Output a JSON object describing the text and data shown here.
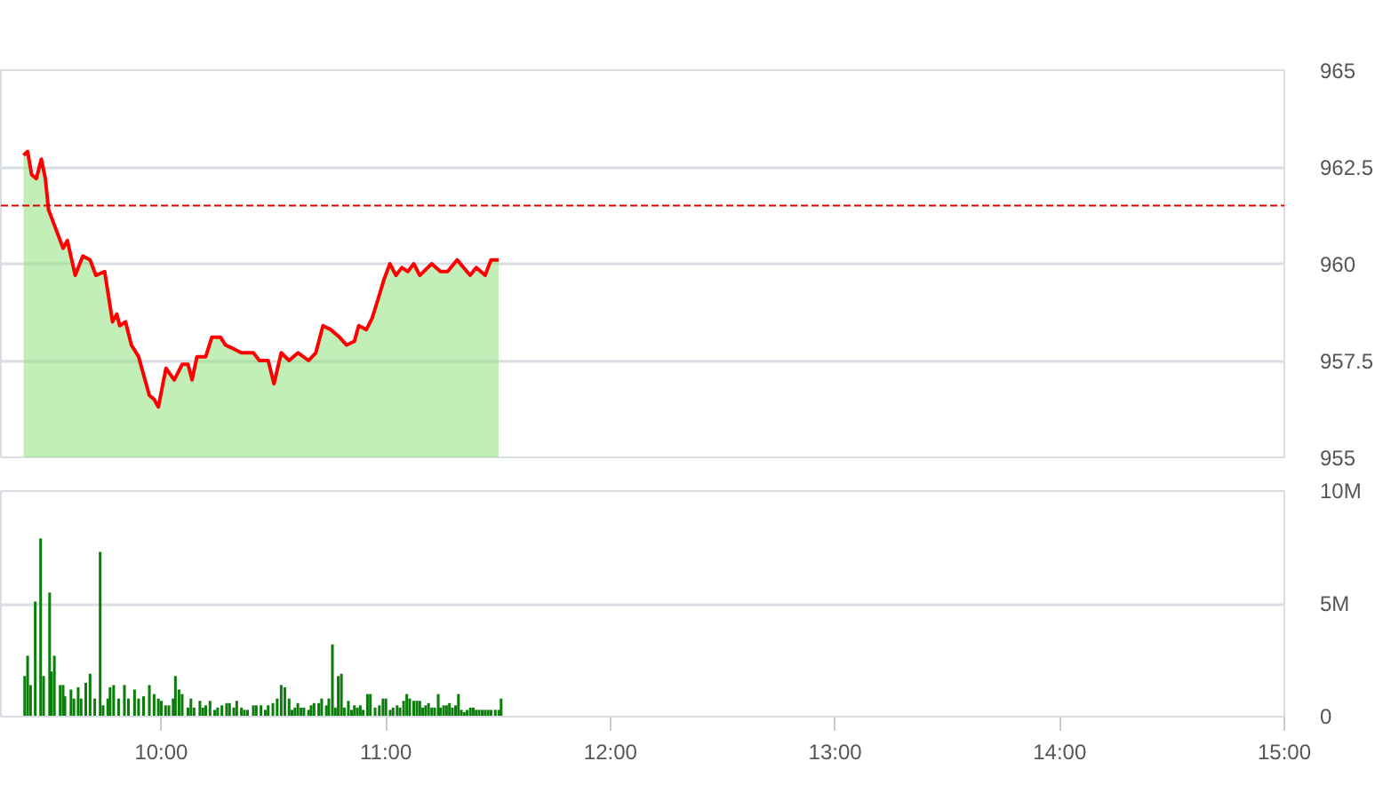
{
  "chart_data": [
    {
      "type": "area",
      "xlim": [
        9.286,
        15
      ],
      "ylim": [
        955,
        965
      ],
      "yticks": [
        965,
        962.5,
        960,
        957.5,
        955
      ],
      "grid": "y",
      "tick_labels": "y",
      "ref_lines": [
        {
          "axis": "y",
          "value": 961.5,
          "color": "#e00000",
          "line_style": "dashed"
        }
      ],
      "series": [
        {
          "type": "line",
          "color": "#ff0000",
          "x": [
            9.387,
            9.405,
            9.423,
            9.444,
            9.466,
            9.484,
            9.498,
            9.524,
            9.563,
            9.582,
            9.617,
            9.651,
            9.683,
            9.709,
            9.748,
            9.783,
            9.802,
            9.815,
            9.841,
            9.867,
            9.899,
            9.947,
            9.968,
            9.987,
            10.021,
            10.058,
            10.093,
            10.119,
            10.137,
            10.159,
            10.198,
            10.225,
            10.264,
            10.286,
            10.323,
            10.357,
            10.41,
            10.437,
            10.476,
            10.502,
            10.534,
            10.569,
            10.609,
            10.656,
            10.688,
            10.72,
            10.754,
            10.794,
            10.825,
            10.86,
            10.879,
            10.913,
            10.939,
            10.966,
            10.992,
            11.018,
            11.045,
            11.071,
            11.098,
            11.124,
            11.151,
            11.204,
            11.243,
            11.275,
            11.317,
            11.375,
            11.402,
            11.442,
            11.468,
            11.502
          ],
          "values": [
            962.8,
            962.9,
            962.3,
            962.2,
            962.7,
            962.2,
            961.4,
            961.0,
            960.4,
            960.6,
            959.7,
            960.2,
            960.1,
            959.7,
            959.8,
            958.5,
            958.7,
            958.4,
            958.5,
            957.9,
            957.6,
            956.6,
            956.5,
            956.3,
            957.3,
            957.0,
            957.4,
            957.4,
            957.0,
            957.6,
            957.6,
            958.1,
            958.1,
            957.9,
            957.8,
            957.7,
            957.7,
            957.5,
            957.5,
            956.9,
            957.7,
            957.5,
            957.7,
            957.5,
            957.7,
            958.4,
            958.3,
            958.1,
            957.9,
            958.0,
            958.4,
            958.3,
            958.6,
            959.1,
            959.6,
            960.0,
            959.7,
            959.9,
            959.8,
            960.0,
            959.7,
            960.0,
            959.8,
            959.8,
            960.1,
            959.7,
            959.9,
            959.7,
            960.1,
            960.1
          ]
        },
        {
          "color": "#8fe07c",
          "x": [
            9.387,
            9.405,
            9.423,
            9.444,
            9.466,
            9.484,
            9.498,
            9.524,
            9.563,
            9.582,
            9.617,
            9.651,
            9.683,
            9.709,
            9.748,
            9.783,
            9.802,
            9.815,
            9.841,
            9.867,
            9.899,
            9.947,
            9.968,
            9.987,
            10.021,
            10.058,
            10.093,
            10.119,
            10.137,
            10.159,
            10.198,
            10.225,
            10.264,
            10.286,
            10.323,
            10.357,
            10.41,
            10.437,
            10.476,
            10.502,
            10.534,
            10.569,
            10.609,
            10.656,
            10.688,
            10.72,
            10.754,
            10.794,
            10.825,
            10.86,
            10.879,
            10.913,
            10.939,
            10.966,
            10.992,
            11.018,
            11.045,
            11.071,
            11.098,
            11.124,
            11.151,
            11.204,
            11.243,
            11.275,
            11.317,
            11.375,
            11.402,
            11.442,
            11.468,
            11.502
          ],
          "values": [
            962.8,
            962.9,
            962.3,
            962.2,
            962.7,
            962.2,
            961.4,
            961.0,
            960.4,
            960.6,
            959.7,
            960.2,
            960.1,
            959.7,
            959.8,
            958.5,
            958.7,
            958.4,
            958.5,
            957.9,
            957.6,
            956.6,
            956.5,
            956.3,
            957.3,
            957.0,
            957.4,
            957.4,
            957.0,
            957.6,
            957.6,
            958.1,
            958.1,
            957.9,
            957.8,
            957.7,
            957.7,
            957.5,
            957.5,
            956.9,
            957.7,
            957.5,
            957.7,
            957.5,
            957.7,
            958.4,
            958.3,
            958.1,
            957.9,
            958.0,
            958.4,
            958.3,
            958.6,
            959.1,
            959.6,
            960.0,
            959.7,
            959.9,
            959.8,
            960.0,
            959.7,
            960.0,
            959.8,
            959.8,
            960.1,
            959.7,
            959.9,
            959.7,
            960.1,
            960.1
          ]
        }
      ]
    },
    {
      "type": "bar",
      "xlim": [
        9.286,
        15
      ],
      "ylim": [
        0,
        10000000
      ],
      "grid": "y",
      "xticks": [
        {
          "value": 10,
          "label": "10:00"
        },
        {
          "value": 11,
          "label": "11:00"
        },
        {
          "value": 12,
          "label": "12:00"
        },
        {
          "value": 13,
          "label": "13:00"
        },
        {
          "value": 14,
          "label": "14:00"
        },
        {
          "value": 15,
          "label": "15:00"
        }
      ],
      "yticks": [
        0,
        {
          "value": 5000000,
          "label": "5M"
        },
        {
          "value": 10000000,
          "label": "10M"
        }
      ],
      "series": [
        {
          "color": "#0a7d0a",
          "x": [
            9.392,
            9.405,
            9.418,
            9.439,
            9.463,
            9.476,
            9.503,
            9.511,
            9.524,
            9.55,
            9.563,
            9.571,
            9.598,
            9.611,
            9.63,
            9.643,
            9.664,
            9.683,
            9.704,
            9.728,
            9.741,
            9.762,
            9.772,
            9.788,
            9.81,
            9.836,
            9.854,
            9.881,
            9.899,
            9.921,
            9.947,
            9.968,
            9.987,
            10.0,
            10.019,
            10.034,
            10.053,
            10.063,
            10.079,
            10.093,
            10.119,
            10.132,
            10.146,
            10.172,
            10.185,
            10.198,
            10.217,
            10.238,
            10.251,
            10.27,
            10.291,
            10.304,
            10.323,
            10.336,
            10.357,
            10.37,
            10.384,
            10.41,
            10.423,
            10.444,
            10.463,
            10.476,
            10.497,
            10.516,
            10.534,
            10.55,
            10.569,
            10.582,
            10.595,
            10.608,
            10.622,
            10.635,
            10.656,
            10.667,
            10.68,
            10.701,
            10.714,
            10.735,
            10.746,
            10.762,
            10.775,
            10.788,
            10.802,
            10.815,
            10.833,
            10.847,
            10.86,
            10.873,
            10.886,
            10.899,
            10.918,
            10.931,
            10.952,
            10.971,
            10.987,
            11.0,
            11.019,
            11.032,
            11.05,
            11.063,
            11.079,
            11.093,
            11.106,
            11.124,
            11.138,
            11.151,
            11.164,
            11.177,
            11.19,
            11.204,
            11.217,
            11.233,
            11.243,
            11.257,
            11.27,
            11.283,
            11.296,
            11.31,
            11.323,
            11.336,
            11.349,
            11.362,
            11.376,
            11.389,
            11.402,
            11.415,
            11.429,
            11.442,
            11.455,
            11.468,
            11.487,
            11.503,
            11.513
          ],
          "values": [
            1800000,
            2700000,
            1400000,
            5100000,
            7900000,
            1800000,
            5500000,
            2000000,
            2700000,
            1400000,
            1400000,
            900000,
            1200000,
            800000,
            1300000,
            800000,
            1500000,
            1900000,
            800000,
            7300000,
            500000,
            800000,
            1300000,
            1400000,
            800000,
            1400000,
            800000,
            1200000,
            800000,
            900000,
            1400000,
            1000000,
            800000,
            700000,
            500000,
            500000,
            800000,
            1800000,
            1200000,
            1000000,
            400000,
            800000,
            400000,
            700000,
            400000,
            500000,
            700000,
            300000,
            400000,
            500000,
            600000,
            600000,
            400000,
            700000,
            400000,
            300000,
            300000,
            500000,
            500000,
            500000,
            300000,
            500000,
            600000,
            800000,
            1400000,
            1300000,
            800000,
            300000,
            400000,
            600000,
            400000,
            400000,
            300000,
            500000,
            600000,
            600000,
            800000,
            500000,
            800000,
            3200000,
            400000,
            1800000,
            1900000,
            400000,
            700000,
            300000,
            500000,
            400000,
            500000,
            300000,
            1000000,
            1000000,
            400000,
            500000,
            800000,
            800000,
            300000,
            400000,
            500000,
            400000,
            700000,
            1000000,
            800000,
            700000,
            700000,
            700000,
            400000,
            500000,
            600000,
            400000,
            400000,
            1000000,
            400000,
            500000,
            500000,
            600000,
            400000,
            500000,
            1000000,
            300000,
            200000,
            300000,
            400000,
            400000,
            300000,
            300000,
            300000,
            300000,
            300000,
            300000,
            300000,
            300000,
            800000
          ]
        }
      ]
    }
  ]
}
